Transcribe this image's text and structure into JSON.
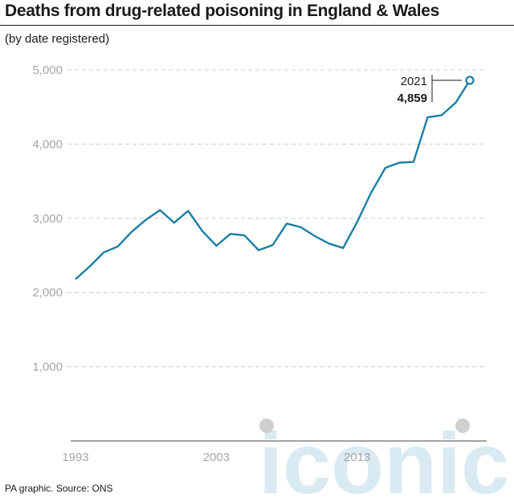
{
  "header": {
    "title": "Deaths from drug-related poisoning in England & Wales",
    "subtitle": "(by date registered)"
  },
  "footer": {
    "source": "PA graphic. Source: ONS"
  },
  "watermark": {
    "text": "iconic"
  },
  "colors": {
    "line": "#1b7fa3",
    "grid": "#cccccc",
    "tick": "#a6a6a6",
    "text": "#1a1a1a",
    "watermark": "#d9eaf2"
  },
  "chart_data": {
    "type": "line",
    "title": "Deaths from drug-related poisoning in England & Wales",
    "subtitle": "(by date registered)",
    "xlabel": "",
    "ylabel": "",
    "ylim": [
      0,
      5000
    ],
    "xlim": [
      1993,
      2021
    ],
    "y_ticks": [
      1000,
      2000,
      3000,
      4000,
      5000
    ],
    "y_tick_labels": [
      "1,000",
      "2,000",
      "3,000",
      "4,000",
      "5,000"
    ],
    "x_ticks": [
      1993,
      2003,
      2013
    ],
    "x_tick_labels": [
      "1993",
      "2003",
      "2013"
    ],
    "grid": "horizontal dashed",
    "series": [
      {
        "x": [
          1993,
          1994,
          1995,
          1996,
          1997,
          1998,
          1999,
          2000,
          2001,
          2002,
          2003,
          2004,
          2005,
          2006,
          2007,
          2008,
          2009,
          2010,
          2011,
          2012,
          2013,
          2014,
          2015,
          2016,
          2017,
          2018,
          2019,
          2020,
          2021
        ],
        "values": [
          2180,
          2350,
          2540,
          2620,
          2820,
          2980,
          3110,
          2940,
          3100,
          2830,
          2630,
          2790,
          2770,
          2570,
          2640,
          2930,
          2880,
          2760,
          2660,
          2600,
          2950,
          3350,
          3680,
          3750,
          3760,
          4360,
          4390,
          4560,
          4859
        ]
      }
    ],
    "annotation": {
      "year": "2021",
      "value": "4,859"
    }
  }
}
